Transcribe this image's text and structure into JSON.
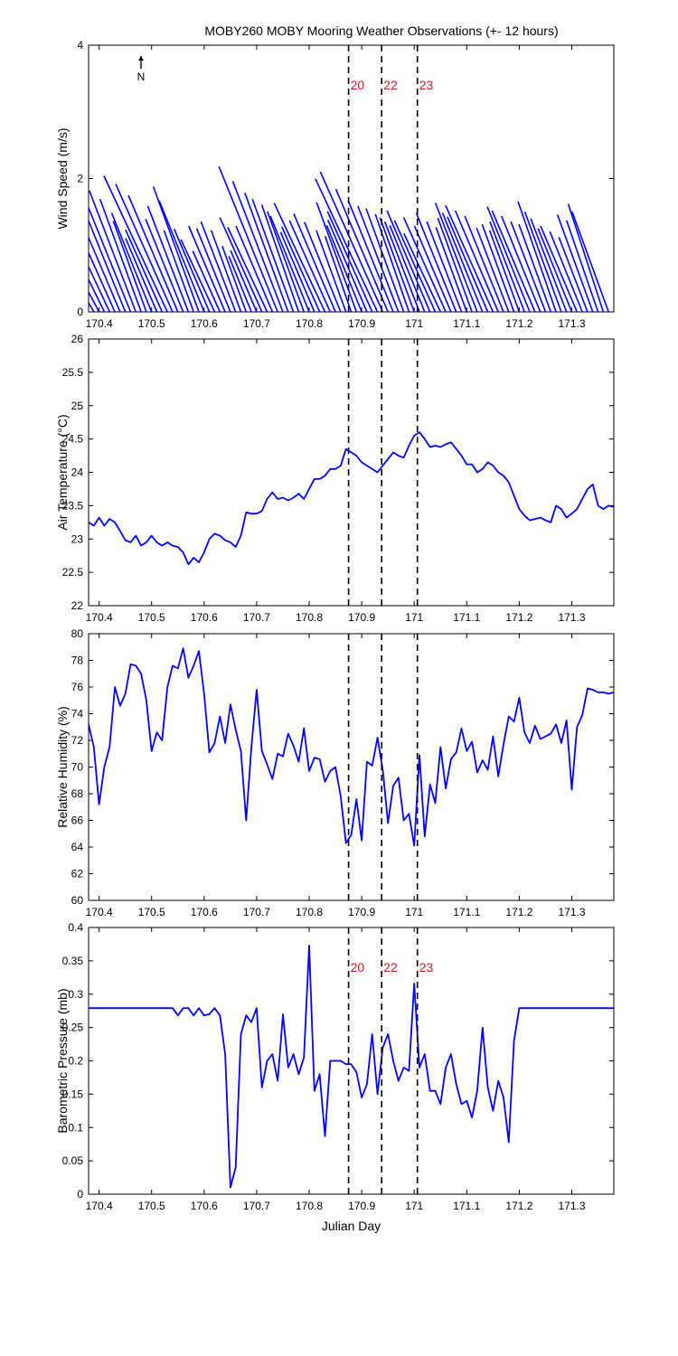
{
  "title": "MOBY260 MOBY Mooring Weather Observations (+- 12 hours)",
  "colors": {
    "series": "#0000ff",
    "events": "#000000",
    "event_labels": "#cc2222",
    "axes": "#000000"
  },
  "events": [
    {
      "label": "20",
      "x": 170.875
    },
    {
      "label": "22",
      "x": 170.938
    },
    {
      "label": "23",
      "x": 171.006
    }
  ],
  "north_indicator": "N",
  "chart_data": [
    {
      "id": "wind",
      "type": "line",
      "subtype": "wind-vectors",
      "ylabel": "Wind Speed (m/s)",
      "xlabel": "",
      "xlim": [
        170.38,
        171.38
      ],
      "ylim": [
        0,
        4
      ],
      "yticks": [
        0,
        2,
        4
      ],
      "xticks": [
        170.4,
        170.5,
        170.6,
        170.7,
        170.8,
        170.9,
        171,
        171.1,
        171.2,
        171.3
      ],
      "show_event_labels": true,
      "note": "each stick starts at (time, 0) and points in the wind direction; length = speed",
      "series": [
        {
          "values_x": [
            170.38,
            170.39,
            170.4,
            170.41,
            170.42,
            170.43,
            170.44,
            170.45,
            170.46,
            170.47,
            170.48,
            170.49,
            170.5,
            170.51,
            170.52,
            170.53,
            170.54,
            170.55,
            170.56,
            170.57,
            170.58,
            170.59,
            170.6,
            170.61,
            170.62,
            170.63,
            170.64,
            170.65,
            170.66,
            170.67,
            170.68,
            170.69,
            170.7,
            170.71,
            170.72,
            170.73,
            170.74,
            170.75,
            170.76,
            170.77,
            170.78,
            170.79,
            170.8,
            170.81,
            170.82,
            170.83,
            170.84,
            170.85,
            170.86,
            170.87,
            170.88,
            170.89,
            170.9,
            170.91,
            170.92,
            170.93,
            170.94,
            170.95,
            170.96,
            170.97,
            170.98,
            170.99,
            171.0,
            171.01,
            171.02,
            171.03,
            171.04,
            171.05,
            171.06,
            171.07,
            171.08,
            171.09,
            171.1,
            171.11,
            171.12,
            171.13,
            171.14,
            171.15,
            171.16,
            171.17,
            171.18,
            171.19,
            171.2,
            171.21,
            171.22,
            171.23,
            171.24,
            171.25,
            171.26,
            171.27,
            171.28,
            171.29,
            171.3,
            171.31,
            171.32,
            171.33,
            171.34,
            171.35,
            171.36,
            171.37
          ],
          "speed": [
            0.8,
            0.7,
            0.95,
            1.65,
            1.3,
            1.8,
            2.1,
            1.5,
            2.2,
            1.95,
            1.8,
            1.45,
            1.6,
            1.2,
            1.35,
            2.25,
            2.1,
            1.9,
            1.5,
            1.7,
            1.3,
            2.0,
            1.8,
            1.35,
            1.2,
            1.0,
            1.4,
            1.35,
            1.45,
            1.3,
            1.05,
            0.9,
            1.0,
            1.55,
            1.4,
            1.4,
            2.35,
            2.1,
            1.9,
            1.8,
            1.7,
            1.6,
            1.55,
            1.3,
            1.4,
            1.8,
            1.5,
            1.6,
            1.45,
            1.3,
            1.2,
            1.75,
            1.4,
            1.5,
            1.65,
            2.2,
            2.3,
            2.0,
            1.8,
            1.7,
            1.65,
            1.55,
            1.5,
            1.45,
            1.4,
            1.65,
            1.5,
            1.3,
            1.55,
            1.4,
            1.6,
            1.45,
            1.35,
            1.5,
            1.75,
            1.6,
            1.55,
            1.75,
            1.65,
            1.55,
            1.35,
            1.4,
            1.3,
            1.45,
            1.7,
            1.65,
            1.55,
            1.45,
            1.4,
            1.75,
            1.6,
            1.5,
            1.35,
            1.4,
            1.3,
            1.2,
            1.55,
            1.45,
            1.7,
            1.6
          ],
          "direction_deg": [
            148,
            150,
            152,
            154,
            155,
            156,
            157,
            158,
            158,
            159,
            160,
            160,
            158,
            157,
            156,
            155,
            156,
            157,
            158,
            159,
            160,
            160,
            158,
            157,
            155,
            156,
            157,
            158,
            159,
            160,
            160,
            158,
            157,
            156,
            155,
            157,
            158,
            159,
            160,
            160,
            161,
            160,
            158,
            157,
            156,
            155,
            156,
            157,
            158,
            160,
            161,
            160,
            158,
            157,
            156,
            155,
            156,
            157,
            158,
            159,
            160,
            161,
            160,
            159,
            158,
            157,
            156,
            155,
            156,
            157,
            158,
            159,
            160,
            160,
            159,
            158,
            157,
            156,
            157,
            158,
            159,
            160,
            160,
            159,
            158,
            157,
            158,
            159,
            160,
            161,
            160,
            159,
            158,
            157,
            158,
            159,
            160,
            161,
            162,
            160
          ]
        }
      ]
    },
    {
      "id": "air_temp",
      "type": "line",
      "ylabel": "Air Temperature (°C)",
      "xlabel": "",
      "xlim": [
        170.38,
        171.38
      ],
      "ylim": [
        22,
        26
      ],
      "yticks": [
        22,
        22.5,
        23,
        23.5,
        24,
        24.5,
        25,
        25.5,
        26
      ],
      "xticks": [
        170.4,
        170.5,
        170.6,
        170.7,
        170.8,
        170.9,
        171,
        171.1,
        171.2,
        171.3
      ],
      "series": [
        {
          "x": [
            170.38,
            170.39,
            170.4,
            170.41,
            170.42,
            170.43,
            170.44,
            170.45,
            170.46,
            170.47,
            170.48,
            170.49,
            170.5,
            170.51,
            170.52,
            170.53,
            170.54,
            170.55,
            170.56,
            170.57,
            170.58,
            170.59,
            170.6,
            170.61,
            170.62,
            170.63,
            170.64,
            170.65,
            170.66,
            170.67,
            170.68,
            170.69,
            170.7,
            170.71,
            170.72,
            170.73,
            170.74,
            170.75,
            170.76,
            170.77,
            170.78,
            170.79,
            170.8,
            170.81,
            170.82,
            170.83,
            170.84,
            170.85,
            170.86,
            170.87,
            170.88,
            170.89,
            170.9,
            170.91,
            170.92,
            170.93,
            170.94,
            170.95,
            170.96,
            170.97,
            170.98,
            170.99,
            171.0,
            171.01,
            171.02,
            171.03,
            171.04,
            171.05,
            171.06,
            171.07,
            171.08,
            171.09,
            171.1,
            171.11,
            171.12,
            171.13,
            171.14,
            171.15,
            171.16,
            171.17,
            171.18,
            171.19,
            171.2,
            171.21,
            171.22,
            171.23,
            171.24,
            171.25,
            171.26,
            171.27,
            171.28,
            171.29,
            171.3,
            171.31,
            171.32,
            171.33,
            171.34,
            171.35,
            171.36,
            171.37,
            171.38
          ],
          "y": [
            23.25,
            23.2,
            23.32,
            23.2,
            23.3,
            23.25,
            23.12,
            22.98,
            22.95,
            23.05,
            22.9,
            22.95,
            23.05,
            22.95,
            22.9,
            22.95,
            22.9,
            22.88,
            22.8,
            22.62,
            22.72,
            22.65,
            22.8,
            23.0,
            23.08,
            23.05,
            22.98,
            22.95,
            22.88,
            23.05,
            23.4,
            23.38,
            23.38,
            23.42,
            23.6,
            23.7,
            23.6,
            23.62,
            23.58,
            23.62,
            23.68,
            23.6,
            23.75,
            23.9,
            23.9,
            23.95,
            24.05,
            24.05,
            24.1,
            24.35,
            24.3,
            24.25,
            24.15,
            24.1,
            24.05,
            24.0,
            24.1,
            24.2,
            24.3,
            24.25,
            24.22,
            24.4,
            24.55,
            24.6,
            24.5,
            24.38,
            24.4,
            24.38,
            24.42,
            24.45,
            24.35,
            24.25,
            24.12,
            24.12,
            24.0,
            24.05,
            24.15,
            24.1,
            24.0,
            23.95,
            23.85,
            23.65,
            23.45,
            23.35,
            23.28,
            23.3,
            23.32,
            23.28,
            23.25,
            23.5,
            23.45,
            23.32,
            23.38,
            23.45,
            23.6,
            23.75,
            23.82,
            23.5,
            23.45,
            23.5,
            23.48
          ]
        }
      ]
    },
    {
      "id": "humidity",
      "type": "line",
      "ylabel": "Relative Humidity (%)",
      "xlabel": "",
      "xlim": [
        170.38,
        171.38
      ],
      "ylim": [
        60,
        80
      ],
      "yticks": [
        60,
        62,
        64,
        66,
        68,
        70,
        72,
        74,
        76,
        78,
        80
      ],
      "xticks": [
        170.4,
        170.5,
        170.6,
        170.7,
        170.8,
        170.9,
        171,
        171.1,
        171.2,
        171.3
      ],
      "series": [
        {
          "x": [
            170.38,
            170.39,
            170.4,
            170.41,
            170.42,
            170.43,
            170.44,
            170.45,
            170.46,
            170.47,
            170.48,
            170.49,
            170.5,
            170.51,
            170.52,
            170.53,
            170.54,
            170.55,
            170.56,
            170.57,
            170.58,
            170.59,
            170.6,
            170.61,
            170.62,
            170.63,
            170.64,
            170.65,
            170.66,
            170.67,
            170.68,
            170.69,
            170.7,
            170.71,
            170.72,
            170.73,
            170.74,
            170.75,
            170.76,
            170.77,
            170.78,
            170.79,
            170.8,
            170.81,
            170.82,
            170.83,
            170.84,
            170.85,
            170.86,
            170.87,
            170.88,
            170.89,
            170.9,
            170.91,
            170.92,
            170.93,
            170.94,
            170.95,
            170.96,
            170.97,
            170.98,
            170.99,
            171.0,
            171.01,
            171.02,
            171.03,
            171.04,
            171.05,
            171.06,
            171.07,
            171.08,
            171.09,
            171.1,
            171.11,
            171.12,
            171.13,
            171.14,
            171.15,
            171.16,
            171.17,
            171.18,
            171.19,
            171.2,
            171.21,
            171.22,
            171.23,
            171.24,
            171.25,
            171.26,
            171.27,
            171.28,
            171.29,
            171.3,
            171.31,
            171.32,
            171.33,
            171.34,
            171.35,
            171.36,
            171.37,
            171.38
          ],
          "y": [
            73.2,
            71.5,
            67.2,
            70.0,
            71.5,
            76.0,
            74.6,
            75.5,
            77.7,
            77.6,
            77.0,
            75.0,
            71.2,
            72.6,
            72.0,
            76.0,
            77.6,
            77.4,
            78.9,
            76.7,
            77.6,
            78.7,
            75.5,
            71.1,
            71.8,
            73.8,
            71.8,
            74.7,
            72.8,
            71.2,
            66.0,
            71.5,
            75.8,
            71.2,
            70.2,
            69.1,
            71.0,
            70.8,
            72.5,
            71.6,
            70.4,
            72.9,
            69.7,
            70.7,
            70.6,
            68.9,
            69.7,
            70.0,
            67.8,
            64.3,
            64.9,
            67.6,
            64.5,
            70.4,
            70.1,
            72.2,
            69.8,
            65.8,
            68.6,
            69.2,
            66.0,
            66.5,
            64.1,
            70.9,
            64.8,
            68.7,
            67.3,
            71.5,
            68.4,
            70.6,
            71.1,
            72.9,
            71.2,
            71.9,
            69.6,
            70.5,
            69.8,
            72.3,
            69.3,
            71.7,
            73.8,
            73.4,
            75.2,
            72.6,
            71.8,
            73.1,
            72.1,
            72.3,
            72.5,
            73.2,
            71.8,
            73.5,
            68.3,
            73.0,
            73.9,
            75.9,
            75.8,
            75.6,
            75.6,
            75.5,
            75.6
          ]
        }
      ]
    },
    {
      "id": "pressure",
      "type": "line",
      "ylabel": "Barometric Pressure (mb)",
      "xlabel": "Julian Day",
      "xlim": [
        170.38,
        171.38
      ],
      "ylim": [
        0,
        0.4
      ],
      "yticks": [
        0,
        0.05,
        0.1,
        0.15,
        0.2,
        0.25,
        0.3,
        0.35,
        0.4
      ],
      "xticks": [
        170.4,
        170.5,
        170.6,
        170.7,
        170.8,
        170.9,
        171,
        171.1,
        171.2,
        171.3
      ],
      "show_event_labels": true,
      "series": [
        {
          "x": [
            170.38,
            170.4,
            170.45,
            170.5,
            170.54,
            170.55,
            170.56,
            170.57,
            170.58,
            170.59,
            170.6,
            170.61,
            170.62,
            170.63,
            170.64,
            170.65,
            170.66,
            170.67,
            170.68,
            170.69,
            170.7,
            170.71,
            170.72,
            170.73,
            170.74,
            170.75,
            170.76,
            170.77,
            170.78,
            170.79,
            170.8,
            170.81,
            170.82,
            170.83,
            170.84,
            170.85,
            170.86,
            170.87,
            170.88,
            170.89,
            170.9,
            170.91,
            170.92,
            170.93,
            170.94,
            170.95,
            170.96,
            170.97,
            170.98,
            170.99,
            171.0,
            171.01,
            171.02,
            171.03,
            171.04,
            171.05,
            171.06,
            171.07,
            171.08,
            171.09,
            171.1,
            171.11,
            171.12,
            171.13,
            171.14,
            171.15,
            171.16,
            171.17,
            171.18,
            171.19,
            171.2,
            171.21,
            171.22,
            171.23,
            171.25,
            171.3,
            171.35,
            171.38
          ],
          "y": [
            0.279,
            0.279,
            0.279,
            0.279,
            0.279,
            0.268,
            0.279,
            0.279,
            0.268,
            0.279,
            0.268,
            0.27,
            0.279,
            0.268,
            0.21,
            0.01,
            0.04,
            0.24,
            0.268,
            0.258,
            0.279,
            0.16,
            0.2,
            0.21,
            0.17,
            0.27,
            0.19,
            0.21,
            0.18,
            0.205,
            0.373,
            0.155,
            0.18,
            0.087,
            0.2,
            0.2,
            0.2,
            0.195,
            0.195,
            0.183,
            0.145,
            0.165,
            0.24,
            0.15,
            0.22,
            0.24,
            0.2,
            0.17,
            0.19,
            0.185,
            0.316,
            0.19,
            0.21,
            0.155,
            0.155,
            0.135,
            0.19,
            0.21,
            0.165,
            0.135,
            0.14,
            0.115,
            0.155,
            0.25,
            0.16,
            0.125,
            0.17,
            0.145,
            0.078,
            0.23,
            0.279,
            0.279,
            0.279,
            0.279,
            0.279,
            0.279,
            0.279,
            0.279
          ]
        }
      ]
    }
  ]
}
